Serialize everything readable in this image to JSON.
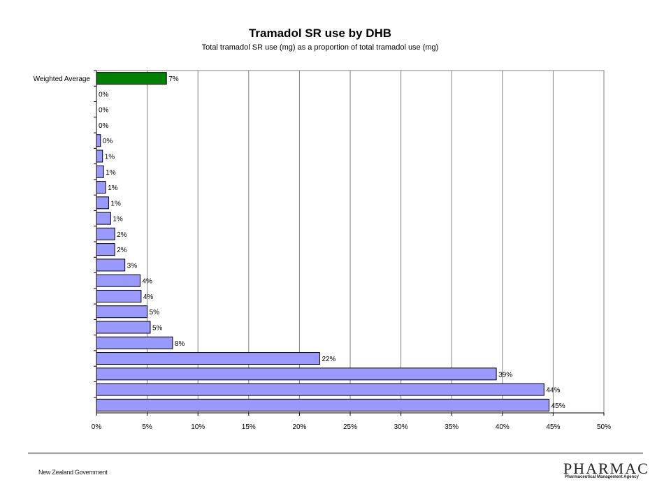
{
  "chart_data": {
    "type": "bar",
    "orientation": "horizontal",
    "title": "Tramadol SR use by DHB",
    "subtitle": "Total tramadol SR use (mg) as a proportion of total tramadol use (mg)",
    "categories": [
      "Weighted Average",
      "",
      "",
      "",
      "",
      "",
      "",
      "",
      "",
      "",
      "",
      "",
      "",
      "",
      "",
      "",
      "",
      "",
      "",
      "",
      "",
      ""
    ],
    "values": [
      0.069,
      0.0,
      0.0,
      0.0,
      0.004,
      0.006,
      0.007,
      0.009,
      0.012,
      0.014,
      0.018,
      0.018,
      0.028,
      0.043,
      0.044,
      0.05,
      0.053,
      0.075,
      0.22,
      0.394,
      0.441,
      0.446
    ],
    "labels": [
      "7%",
      "0%",
      "0%",
      "0%",
      "0%",
      "1%",
      "1%",
      "1%",
      "1%",
      "1%",
      "2%",
      "2%",
      "3%",
      "4%",
      "4%",
      "5%",
      "5%",
      "8%",
      "22%",
      "39%",
      "44%",
      "45%"
    ],
    "xlim": [
      0,
      0.5
    ],
    "xticks": [
      "0%",
      "5%",
      "10%",
      "15%",
      "20%",
      "25%",
      "30%",
      "35%",
      "40%",
      "45%",
      "50%"
    ],
    "grid": "vertical",
    "legend": "none",
    "colors": {
      "highlight": "#008000",
      "bar": "#9999FF",
      "edge": "#000000",
      "grid": "#808080"
    }
  },
  "footer": {
    "left": "New Zealand Government",
    "logo": "PHARMAC",
    "tagline": "Pharmaceutical Management Agency"
  }
}
